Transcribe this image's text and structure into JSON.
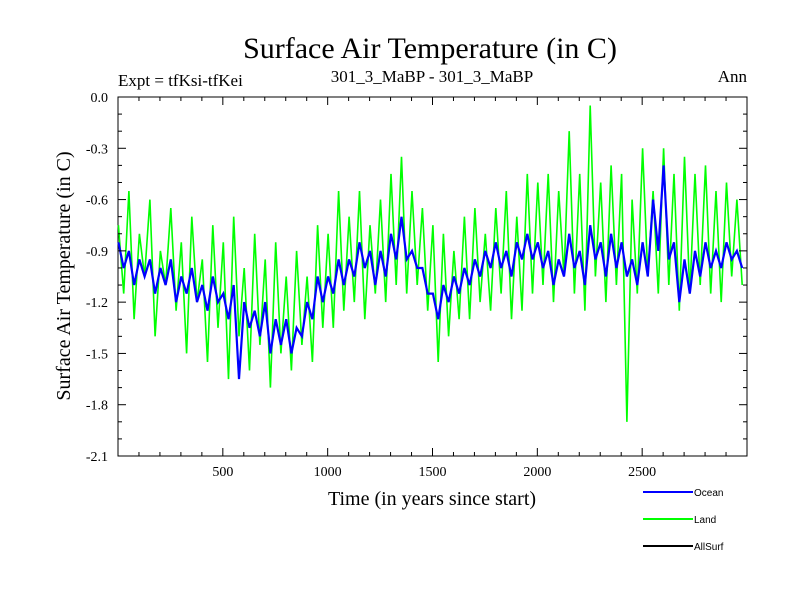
{
  "chart_data": {
    "type": "line",
    "title": "Surface Air Temperature (in C)",
    "subtitle_left": "Expt = tfKsi-tfKei",
    "subtitle_center": "301_3_MaBP - 301_3_MaBP",
    "subtitle_right": "Ann",
    "xlabel": "Time (in years since start)",
    "ylabel": "Surface Air Temperature (in C)",
    "xlim": [
      0,
      3000
    ],
    "ylim": [
      -2.1,
      0.0
    ],
    "x_ticks": [
      500,
      1000,
      1500,
      2000,
      2500
    ],
    "x_tick_labels": [
      "500",
      "1000",
      "1500",
      "2000",
      "2500"
    ],
    "y_ticks": [
      0.0,
      -0.3,
      -0.6,
      -0.9,
      -1.2,
      -1.5,
      -1.8,
      -2.1
    ],
    "y_tick_labels": [
      "0.0",
      "-0.3",
      "-0.6",
      "-0.9",
      "-1.2",
      "-1.5",
      "-1.8",
      "-2.1"
    ],
    "grid": false,
    "legend_position": "bottom-right",
    "series": [
      {
        "name": "Land",
        "color": "#00ff00",
        "x_step": 25,
        "approx_mean_by_century": [
          -0.9,
          -0.98,
          -1.02,
          -1.06,
          -1.09,
          -1.14,
          -1.18,
          -1.21,
          -1.18,
          -1.12,
          -1.02,
          -1.0,
          -0.96,
          -0.92,
          -0.85,
          -1.0,
          -1.08,
          -1.04,
          -0.95,
          -0.92,
          -0.88,
          -0.9,
          -0.92,
          -0.9,
          -0.92,
          -0.88,
          -0.85,
          -0.9,
          -0.88,
          -0.9
        ],
        "values": [
          -0.75,
          -1.15,
          -0.55,
          -1.3,
          -0.8,
          -1.05,
          -0.6,
          -1.4,
          -0.9,
          -1.1,
          -0.65,
          -1.25,
          -0.85,
          -1.5,
          -0.7,
          -1.2,
          -0.95,
          -1.55,
          -0.75,
          -1.35,
          -0.85,
          -1.65,
          -0.7,
          -1.4,
          -1.0,
          -1.6,
          -0.8,
          -1.45,
          -0.95,
          -1.7,
          -0.85,
          -1.5,
          -1.05,
          -1.6,
          -0.9,
          -1.45,
          -1.05,
          -1.55,
          -0.75,
          -1.35,
          -0.8,
          -1.35,
          -0.55,
          -1.25,
          -0.7,
          -1.2,
          -0.55,
          -1.3,
          -0.75,
          -1.15,
          -0.6,
          -1.2,
          -0.45,
          -1.1,
          -0.35,
          -1.15,
          -0.55,
          -1.1,
          -0.65,
          -1.25,
          -0.75,
          -1.55,
          -0.8,
          -1.4,
          -0.9,
          -1.3,
          -0.7,
          -1.3,
          -0.65,
          -1.2,
          -0.8,
          -1.25,
          -0.65,
          -1.15,
          -0.55,
          -1.3,
          -0.7,
          -1.25,
          -0.45,
          -1.15,
          -0.5,
          -1.1,
          -0.45,
          -1.2,
          -0.55,
          -1.05,
          -0.2,
          -1.15,
          -0.45,
          -1.25,
          -0.05,
          -1.05,
          -0.5,
          -1.2,
          -0.4,
          -1.1,
          -0.45,
          -1.9,
          -0.6,
          -1.15,
          -0.3,
          -1.05,
          -0.55,
          -1.15,
          -0.3,
          -1.1,
          -0.45,
          -1.25,
          -0.35,
          -1.15,
          -0.45,
          -1.1,
          -0.4,
          -1.15,
          -0.55,
          -1.2,
          -0.5,
          -1.05,
          -0.6,
          -1.1
        ]
      },
      {
        "name": "Ocean",
        "color": "#0000ff",
        "x_step": 25,
        "values": [
          -0.85,
          -1.0,
          -0.9,
          -1.1,
          -0.95,
          -1.05,
          -0.95,
          -1.15,
          -1.0,
          -1.1,
          -0.95,
          -1.2,
          -1.05,
          -1.15,
          -1.0,
          -1.2,
          -1.1,
          -1.25,
          -1.05,
          -1.2,
          -1.15,
          -1.3,
          -1.1,
          -1.65,
          -1.2,
          -1.35,
          -1.25,
          -1.4,
          -1.2,
          -1.5,
          -1.3,
          -1.45,
          -1.3,
          -1.5,
          -1.35,
          -1.4,
          -1.2,
          -1.3,
          -1.05,
          -1.2,
          -1.05,
          -1.15,
          -0.95,
          -1.1,
          -0.95,
          -1.05,
          -0.85,
          -1.0,
          -0.9,
          -1.1,
          -0.9,
          -1.05,
          -0.8,
          -0.95,
          -0.7,
          -0.95,
          -0.9,
          -1.0,
          -1.0,
          -1.15,
          -1.15,
          -1.3,
          -1.1,
          -1.2,
          -1.05,
          -1.15,
          -1.0,
          -1.1,
          -0.95,
          -1.05,
          -0.9,
          -1.0,
          -0.85,
          -1.0,
          -0.9,
          -1.05,
          -0.85,
          -0.95,
          -0.8,
          -0.95,
          -0.85,
          -1.0,
          -0.9,
          -1.1,
          -0.95,
          -1.05,
          -0.8,
          -1.0,
          -0.9,
          -1.1,
          -0.75,
          -0.95,
          -0.85,
          -1.05,
          -0.8,
          -1.0,
          -0.85,
          -1.05,
          -0.95,
          -1.1,
          -0.85,
          -1.05,
          -0.6,
          -0.9,
          -0.4,
          -0.95,
          -0.85,
          -1.2,
          -0.95,
          -1.15,
          -0.9,
          -1.05,
          -0.85,
          -1.0,
          -0.9,
          -1.0,
          -0.85,
          -0.95,
          -0.9,
          -1.0
        ]
      },
      {
        "name": "AllSurf",
        "color": "#000000",
        "values": []
      }
    ]
  }
}
